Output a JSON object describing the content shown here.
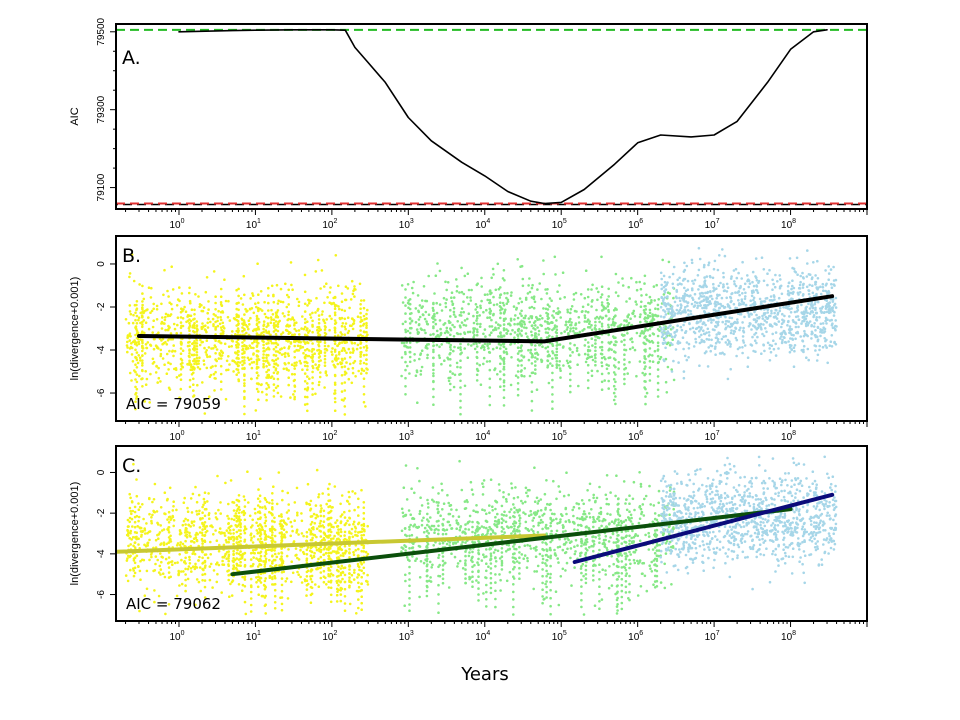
{
  "chart_data": [
    {
      "id": "A",
      "type": "line",
      "panel_label": "A.",
      "ylabel": "AIC",
      "xscale": "log10",
      "xlim": [
        0.15,
        1000000000
      ],
      "ylim": [
        79045,
        79520
      ],
      "x_tick_exponents": [
        0,
        1,
        2,
        3,
        4,
        5,
        6,
        7,
        8
      ],
      "y_ticks": [
        {
          "value": 79100,
          "label": "79100"
        },
        {
          "value": 79300,
          "label": "79300"
        },
        {
          "value": 79500,
          "label": "79500"
        }
      ],
      "y_minor_ticks": [
        79150,
        79200,
        79250,
        79350,
        79400,
        79450
      ],
      "reference_lines": [
        {
          "name": "max-aic",
          "y": 79505,
          "color": "#22bb22",
          "style": "dashed"
        },
        {
          "name": "min-aic",
          "y": 79059,
          "color": "#e03030",
          "style": "dashed",
          "underlay_color": "#000000"
        }
      ],
      "series": [
        {
          "color": "#000000",
          "x": [
            1,
            5,
            10,
            30,
            100,
            150,
            200,
            300,
            500,
            1000,
            2000,
            5000,
            10000,
            20000,
            40000,
            60000,
            100000,
            200000,
            500000,
            1000000,
            2000000,
            5000000,
            10000000,
            20000000,
            50000000,
            100000000,
            200000000,
            300000000
          ],
          "y": [
            79500,
            79503,
            79504,
            79505,
            79505,
            79504,
            79460,
            79420,
            79370,
            79280,
            79220,
            79165,
            79130,
            79090,
            79065,
            79059,
            79062,
            79095,
            79160,
            79215,
            79235,
            79230,
            79235,
            79270,
            79370,
            79455,
            79500,
            79505
          ]
        }
      ]
    },
    {
      "id": "B",
      "type": "scatter",
      "panel_label": "B.",
      "ylabel": "ln(divergence+0.001)",
      "annotation": "AIC = 79059",
      "xscale": "log10",
      "xlim": [
        0.15,
        1000000000
      ],
      "ylim": [
        -7.3,
        1.3
      ],
      "x_tick_exponents": [
        0,
        1,
        2,
        3,
        4,
        5,
        6,
        7,
        8
      ],
      "y_ticks": [
        {
          "value": 0,
          "label": "0"
        },
        {
          "value": -2,
          "label": "-2"
        },
        {
          "value": -4,
          "label": "-4"
        },
        {
          "value": -6,
          "label": "-6"
        }
      ],
      "point_groups": [
        {
          "name": "yellow",
          "color": "#f4f41c",
          "x_range": [
            0.2,
            300
          ],
          "y_mean": -3.4,
          "y_sd": 1.3
        },
        {
          "name": "green",
          "color": "#86e886",
          "x_range": [
            800,
            3000000
          ],
          "y_mean": -3.0,
          "y_sd": 1.2
        },
        {
          "name": "lightblue",
          "color": "#a6d6e8",
          "x_range": [
            2000000,
            400000000
          ],
          "y_mean": -2.3,
          "y_sd": 1.1
        }
      ],
      "series": [
        {
          "color": "#000000",
          "x": [
            0.3,
            60000,
            350000000
          ],
          "y": [
            -3.35,
            -3.6,
            -1.5
          ]
        }
      ]
    },
    {
      "id": "C",
      "type": "scatter",
      "panel_label": "C.",
      "ylabel": "ln(divergence+0.001)",
      "annotation": "AIC = 79062",
      "xscale": "log10",
      "xlim": [
        0.15,
        1000000000
      ],
      "ylim": [
        -7.3,
        1.3
      ],
      "x_tick_exponents": [
        0,
        1,
        2,
        3,
        4,
        5,
        6,
        7,
        8
      ],
      "y_ticks": [
        {
          "value": 0,
          "label": "0"
        },
        {
          "value": -2,
          "label": "-2"
        },
        {
          "value": -4,
          "label": "-4"
        },
        {
          "value": -6,
          "label": "-6"
        }
      ],
      "point_groups": [
        {
          "name": "yellow",
          "color": "#f4f41c",
          "x_range": [
            0.2,
            300
          ],
          "y_mean": -3.4,
          "y_sd": 1.3
        },
        {
          "name": "green",
          "color": "#86e886",
          "x_range": [
            800,
            3000000
          ],
          "y_mean": -3.0,
          "y_sd": 1.2
        },
        {
          "name": "lightblue",
          "color": "#a6d6e8",
          "x_range": [
            2000000,
            400000000
          ],
          "y_mean": -2.3,
          "y_sd": 1.1
        }
      ],
      "series": [
        {
          "color": "#c8c832",
          "x": [
            0.15,
            60000
          ],
          "y": [
            -3.9,
            -3.1
          ]
        },
        {
          "color": "#0b4f0b",
          "x": [
            5,
            100000000
          ],
          "y": [
            -5.0,
            -1.8
          ]
        },
        {
          "color": "#0b0b7a",
          "x": [
            150000,
            350000000
          ],
          "y": [
            -4.4,
            -1.1
          ]
        }
      ]
    }
  ],
  "figure": {
    "xlabel": "Years",
    "colors": {
      "background": "#ffffff",
      "frame": "#000000"
    }
  }
}
